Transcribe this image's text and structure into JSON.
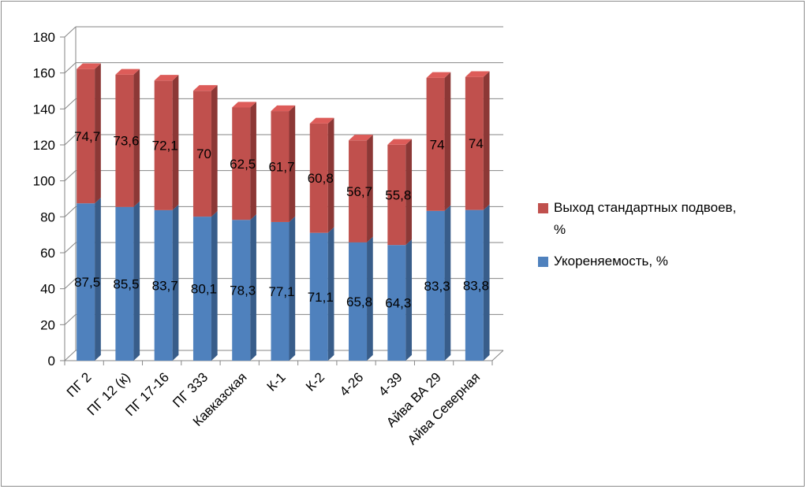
{
  "chart_data": {
    "type": "bar",
    "stacked": true,
    "three_d": true,
    "categories": [
      "ПГ 2",
      "ПГ 12 (к)",
      "ПГ 17-16",
      "ПГ 333",
      "Кавказская",
      "К-1",
      "К-2",
      "4-26",
      "4-39",
      "Айва ВА 29",
      "Айва Северная"
    ],
    "series": [
      {
        "name": "Укореняемость, %",
        "color": "#4f81bd",
        "side_color": "#385d8a",
        "values": [
          87.5,
          85.5,
          83.7,
          80.1,
          78.3,
          77.1,
          71.1,
          65.8,
          64.3,
          83.3,
          83.8
        ],
        "labels": [
          "87,5",
          "85,5",
          "83,7",
          "80,1",
          "78,3",
          "77,1",
          "71,1",
          "65,8",
          "64,3",
          "83,3",
          "83,8"
        ]
      },
      {
        "name": "Выход стандартных подвоев, %",
        "color": "#c0504d",
        "side_color": "#8c3836",
        "values": [
          74.7,
          73.6,
          72.1,
          70,
          62.5,
          61.7,
          60.8,
          56.7,
          55.8,
          74,
          74
        ],
        "labels": [
          "74,7",
          "73,6",
          "72,1",
          "70",
          "62,5",
          "61,7",
          "60,8",
          "56,7",
          "55,8",
          "74",
          "74"
        ]
      }
    ],
    "y_ticks": [
      "0",
      "20",
      "40",
      "60",
      "80",
      "100",
      "120",
      "140",
      "160",
      "180"
    ],
    "ylim": [
      0,
      180
    ],
    "grid": true,
    "legend_position": "right",
    "legend_items": [
      {
        "label": "Выход стандартных подвоев,",
        "label_line2": "%",
        "color": "#c0504d"
      },
      {
        "label": "Укореняемость, %",
        "color": "#4f81bd"
      }
    ]
  }
}
